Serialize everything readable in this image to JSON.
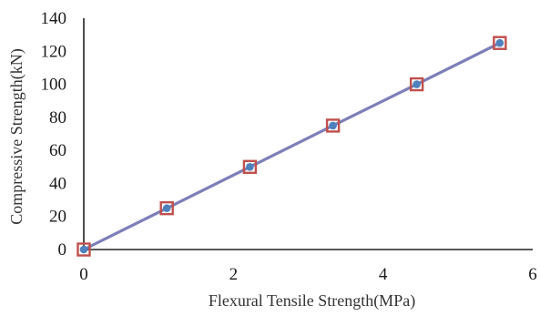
{
  "chart_data": {
    "type": "line",
    "title": "",
    "xlabel": "Flexural Tensile Strength(MPa)",
    "ylabel": "Compressive Strength(kN)",
    "xlim": [
      0,
      6
    ],
    "ylim": [
      0,
      140
    ],
    "x_ticks": [
      0,
      2,
      4,
      6
    ],
    "y_ticks": [
      0,
      20,
      40,
      60,
      80,
      100,
      120,
      140
    ],
    "grid": false,
    "legend": "none",
    "series": [
      {
        "x": [
          0,
          1.11,
          2.22,
          3.33,
          4.45,
          5.56
        ],
        "values": [
          0,
          25,
          50,
          75,
          100,
          125
        ],
        "line_color": "#7d7fb8",
        "marker": "square",
        "marker_edge_color": "#c0504d",
        "marker_face_color": "#4f81bd"
      }
    ]
  }
}
